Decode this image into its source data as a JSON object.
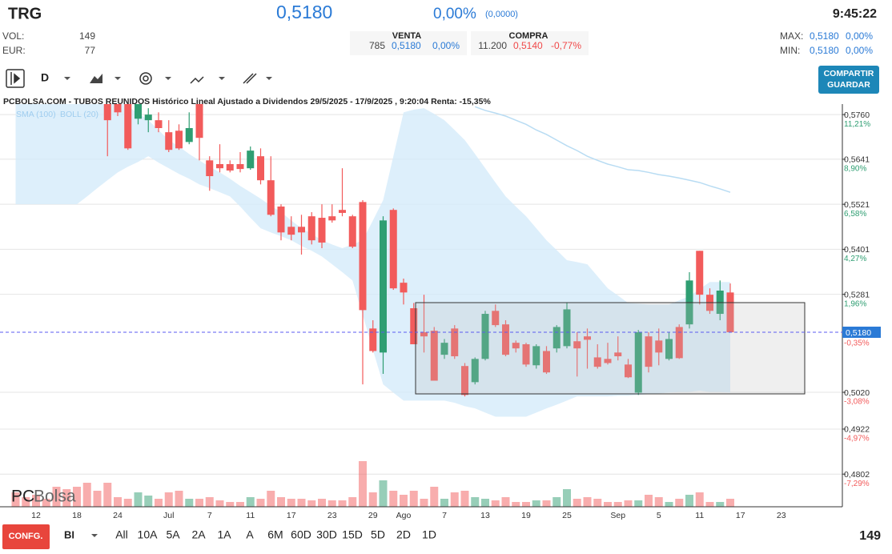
{
  "header": {
    "ticker": "TRG",
    "price": "0,5180",
    "change": "0,00%",
    "change_abs": "(0,0000)",
    "time": "9:45:22",
    "vol_label": "VOL:",
    "vol": "149",
    "eur_label": "EUR:",
    "eur": "77",
    "venta_label": "VENTA",
    "venta_qty": "785",
    "venta_price": "0,5180",
    "venta_pct": "0,00%",
    "compra_label": "COMPRA",
    "compra_qty": "11.200",
    "compra_price": "0,5140",
    "compra_pct": "-0,77%",
    "max_label": "MAX:",
    "max": "0,5180",
    "max_pct": "0,00%",
    "min_label": "MIN:",
    "min": "0,5180",
    "min_pct": "0,00%"
  },
  "toolbar": {
    "period": "D",
    "share_1": "COMPARTIR",
    "share_2": "GUARDAR"
  },
  "watermark": {
    "a": "PC",
    "b": "Bolsa"
  },
  "chart_data": {
    "type": "candlestick",
    "title": "PCBOLSA.COM - TUBOS REUNIDOS Histórico Lineal Ajustado a Dividendos 29/5/2025 - 17/9/2025 , 9:20:04 Renta: -15,35%",
    "legend": [
      "SMA (100)",
      "BOLL (20)"
    ],
    "ylim": [
      0.4715,
      0.5788
    ],
    "yticks": [
      {
        "value": 0.576,
        "label": "0,5760"
      },
      {
        "value": 0.5641,
        "label": "0,5641"
      },
      {
        "value": 0.5521,
        "label": "0,5521"
      },
      {
        "value": 0.5401,
        "label": "0,5401"
      },
      {
        "value": 0.5281,
        "label": "0,5281"
      },
      {
        "value": 0.502,
        "label": "0,5020"
      },
      {
        "value": 0.4922,
        "label": "0,4922"
      },
      {
        "value": 0.4802,
        "label": "0,4802"
      }
    ],
    "ytick_pct": [
      "11,21%",
      "8,90%",
      "6,58%",
      "4,27%",
      "1,96%",
      "-3,08%",
      "-4,97%",
      "-7,29%"
    ],
    "last_price": {
      "value": 0.518,
      "label": "0,5180",
      "pct": "-0,35%"
    },
    "grid": true,
    "colors": {
      "up": "#2f9e72",
      "down": "#f25b5b",
      "band": "#d5ebfa",
      "sma": "#b8dcf3",
      "price_line": "#5b5bf0",
      "label_bg": "#2a7ad6"
    },
    "categories": [
      null,
      null,
      "12",
      null,
      null,
      null,
      "18",
      null,
      null,
      null,
      "24",
      null,
      null,
      null,
      null,
      "Jul",
      null,
      null,
      null,
      "7",
      null,
      null,
      null,
      "11",
      null,
      null,
      null,
      "17",
      null,
      null,
      null,
      "23",
      null,
      null,
      null,
      "29",
      null,
      null,
      "Ago",
      null,
      null,
      null,
      "7",
      null,
      null,
      null,
      "13",
      null,
      null,
      null,
      "19",
      null,
      null,
      null,
      "25",
      null,
      null,
      null,
      null,
      "Sep",
      null,
      null,
      null,
      "5",
      null,
      null,
      null,
      "11",
      null,
      null,
      null,
      "17",
      null,
      null,
      null,
      "23"
    ],
    "open": [
      null,
      null,
      null,
      null,
      null,
      null,
      null,
      null,
      null,
      0.5788,
      0.5788,
      0.5788,
      0.5749,
      0.5745,
      0.5745,
      0.5713,
      0.5717,
      0.5687,
      0.5788,
      0.5638,
      0.5628,
      0.5628,
      0.5628,
      0.5617,
      0.5649,
      0.5585,
      0.5515,
      0.5461,
      0.5461,
      0.5489,
      0.5485,
      0.5489,
      0.5506,
      0.5489,
      0.5527,
      0.519,
      0.5126,
      0.5506,
      0.5312,
      0.5244,
      0.518,
      0.5184,
      0.512,
      0.519,
      0.509,
      0.5047,
      0.5109,
      0.5237,
      0.5201,
      0.5152,
      0.5148,
      0.5092,
      0.513,
      0.5137,
      0.5143,
      0.5156,
      0.5169,
      0.5113,
      0.5109,
      0.5126,
      0.5094,
      0.5019,
      0.5169,
      0.5158,
      0.5109,
      0.5194,
      0.5201,
      0.5397,
      0.528,
      0.5229,
      0.5286,
      null,
      null,
      null,
      null,
      null
    ],
    "high": [
      null,
      null,
      null,
      null,
      null,
      null,
      null,
      null,
      null,
      0.5798,
      0.5798,
      0.5798,
      0.5798,
      0.5777,
      0.5766,
      0.5745,
      0.5734,
      0.5766,
      0.5798,
      0.5649,
      0.5681,
      0.5638,
      0.566,
      0.5675,
      0.567,
      0.5649,
      0.5521,
      0.5489,
      0.5493,
      0.55,
      0.5521,
      0.5521,
      0.5617,
      0.5493,
      0.5532,
      0.5212,
      0.5489,
      0.551,
      0.5323,
      0.5258,
      0.528,
      0.5194,
      0.5162,
      0.5199,
      0.5098,
      0.5113,
      0.5237,
      0.5254,
      0.5212,
      0.5158,
      0.5152,
      0.5148,
      0.5143,
      0.5199,
      0.5258,
      0.518,
      0.519,
      0.5148,
      0.5152,
      0.5169,
      0.5109,
      0.5186,
      0.518,
      0.519,
      0.518,
      0.5201,
      0.534,
      0.5397,
      0.5297,
      0.5318,
      0.531,
      null,
      null,
      null,
      null,
      null
    ],
    "low": [
      null,
      null,
      null,
      null,
      null,
      null,
      null,
      null,
      null,
      0.5649,
      0.5756,
      0.5666,
      0.5734,
      0.5713,
      0.5713,
      0.566,
      0.5666,
      0.5681,
      0.5638,
      0.5557,
      0.5606,
      0.5606,
      0.5606,
      0.5613,
      0.5574,
      0.5489,
      0.5425,
      0.5425,
      0.5387,
      0.5414,
      0.5404,
      0.5472,
      0.5489,
      0.5404,
      0.5041,
      0.5126,
      0.5069,
      0.5293,
      0.5254,
      0.5148,
      0.5126,
      0.5051,
      0.5109,
      0.5109,
      0.5009,
      0.5041,
      0.5105,
      0.5194,
      0.5116,
      0.5126,
      0.5088,
      0.5083,
      0.5069,
      0.5126,
      0.5137,
      0.5062,
      0.5083,
      0.5083,
      0.5094,
      0.5105,
      0.5058,
      0.5013,
      0.5073,
      0.5092,
      0.5105,
      0.5109,
      0.519,
      0.5254,
      0.5229,
      0.5212,
      0.518,
      null,
      null,
      null,
      null,
      null
    ],
    "close": [
      null,
      null,
      null,
      null,
      null,
      null,
      null,
      null,
      null,
      0.5745,
      0.5766,
      0.567,
      0.5788,
      0.576,
      0.5724,
      0.5666,
      0.567,
      0.5724,
      0.5698,
      0.5596,
      0.5617,
      0.5611,
      0.5615,
      0.5664,
      0.5585,
      0.5493,
      0.5446,
      0.544,
      0.5446,
      0.5425,
      0.5419,
      0.5478,
      0.5498,
      0.5408,
      0.5239,
      0.513,
      0.5478,
      0.5297,
      0.5286,
      0.5148,
      0.5169,
      0.5051,
      0.5152,
      0.5116,
      0.5013,
      0.5109,
      0.5229,
      0.5199,
      0.512,
      0.5137,
      0.5094,
      0.5143,
      0.5073,
      0.5194,
      0.5241,
      0.5137,
      0.516,
      0.5088,
      0.5098,
      0.5116,
      0.506,
      0.518,
      0.5088,
      0.5126,
      0.5162,
      0.5111,
      0.5318,
      0.528,
      0.5237,
      0.5291,
      0.518,
      null,
      null,
      null,
      null,
      null
    ],
    "volume": [
      18,
      12,
      15,
      10,
      25,
      22,
      25,
      30,
      20,
      30,
      12,
      10,
      18,
      14,
      10,
      18,
      20,
      10,
      10,
      12,
      8,
      6,
      6,
      12,
      10,
      20,
      12,
      10,
      10,
      8,
      10,
      8,
      8,
      12,
      57,
      18,
      33,
      20,
      15,
      20,
      10,
      25,
      10,
      18,
      20,
      12,
      10,
      8,
      12,
      6,
      6,
      8,
      8,
      12,
      22,
      10,
      12,
      10,
      6,
      6,
      8,
      8,
      15,
      12,
      6,
      10,
      15,
      18,
      6,
      6,
      10,
      null,
      null,
      null,
      null,
      null
    ],
    "volume_lim": [
      0,
      60
    ],
    "boll_upper": [
      0.58,
      0.58,
      0.58,
      0.58,
      0.58,
      0.58,
      0.58,
      0.58,
      0.58,
      0.58,
      0.58,
      0.5781,
      0.5764,
      0.5745,
      0.5719,
      0.5692,
      0.5675,
      0.5655,
      0.5638,
      0.5621,
      0.5606,
      0.5589,
      0.557,
      0.5553,
      0.5536,
      0.5517,
      0.55,
      0.5478,
      0.5457,
      0.5442,
      0.5425,
      0.5414,
      0.5404,
      0.5414,
      0.5425,
      0.5478,
      0.5532,
      0.5649,
      0.5766,
      0.5773,
      0.5777,
      0.5762,
      0.5745,
      0.5719,
      0.5692,
      0.5655,
      0.5617,
      0.5579,
      0.5542,
      0.5515,
      0.5489,
      0.5457,
      0.5425,
      0.5399,
      0.5372,
      0.5367,
      0.5361,
      0.5329,
      0.5297,
      0.5278,
      0.5258,
      0.5256,
      0.5254,
      0.5254,
      0.5254,
      0.5265,
      0.5276,
      0.5295,
      0.5314,
      0.5314,
      0.5314,
      null,
      null,
      null,
      null,
      null
    ],
    "boll_lower": [
      0.5521,
      0.5521,
      0.5521,
      0.5521,
      0.5521,
      0.5521,
      0.5521,
      0.5542,
      0.5564,
      0.5585,
      0.5606,
      0.5621,
      0.5634,
      0.5649,
      0.5632,
      0.5617,
      0.5602,
      0.5589,
      0.5574,
      0.5564,
      0.5553,
      0.5542,
      0.5515,
      0.5485,
      0.5457,
      0.5446,
      0.5436,
      0.5425,
      0.541,
      0.5397,
      0.5382,
      0.5361,
      0.534,
      0.5318,
      0.5226,
      0.5133,
      0.5041,
      0.5019,
      0.4998,
      0.4998,
      0.4998,
      0.4998,
      0.4998,
      0.4992,
      0.4983,
      0.4977,
      0.4966,
      0.4955,
      0.4955,
      0.4955,
      0.4955,
      0.4966,
      0.4977,
      0.4987,
      0.4998,
      0.5009,
      0.5009,
      0.5009,
      0.5009,
      0.5011,
      0.5011,
      0.5013,
      0.5015,
      0.5017,
      0.5019,
      0.5021,
      0.5021,
      0.5024,
      0.5021,
      0.5021,
      0.5019,
      null,
      null,
      null,
      null,
      null
    ],
    "sma": [
      null,
      null,
      null,
      null,
      null,
      null,
      null,
      null,
      null,
      null,
      null,
      null,
      null,
      null,
      null,
      null,
      null,
      null,
      null,
      null,
      null,
      null,
      null,
      null,
      null,
      null,
      null,
      null,
      null,
      null,
      null,
      null,
      null,
      null,
      null,
      null,
      null,
      null,
      null,
      null,
      null,
      null,
      null,
      null,
      null,
      0.5781,
      0.5771,
      0.5764,
      0.5756,
      0.5745,
      0.5734,
      0.5719,
      0.5707,
      0.5692,
      0.5677,
      0.5664,
      0.5649,
      0.5638,
      0.5628,
      0.5621,
      0.5613,
      0.5611,
      0.5606,
      0.56,
      0.5596,
      0.5591,
      0.5585,
      0.5579,
      0.557,
      0.5562,
      0.5553,
      null,
      null,
      null,
      null,
      null
    ]
  },
  "footer": {
    "config": "CONFG.",
    "mode": "BI",
    "ranges": [
      "All",
      "10A",
      "5A",
      "2A",
      "1A",
      "A",
      "6M",
      "60D",
      "30D",
      "15D",
      "5D",
      "2D",
      "1D"
    ],
    "count": "149"
  }
}
